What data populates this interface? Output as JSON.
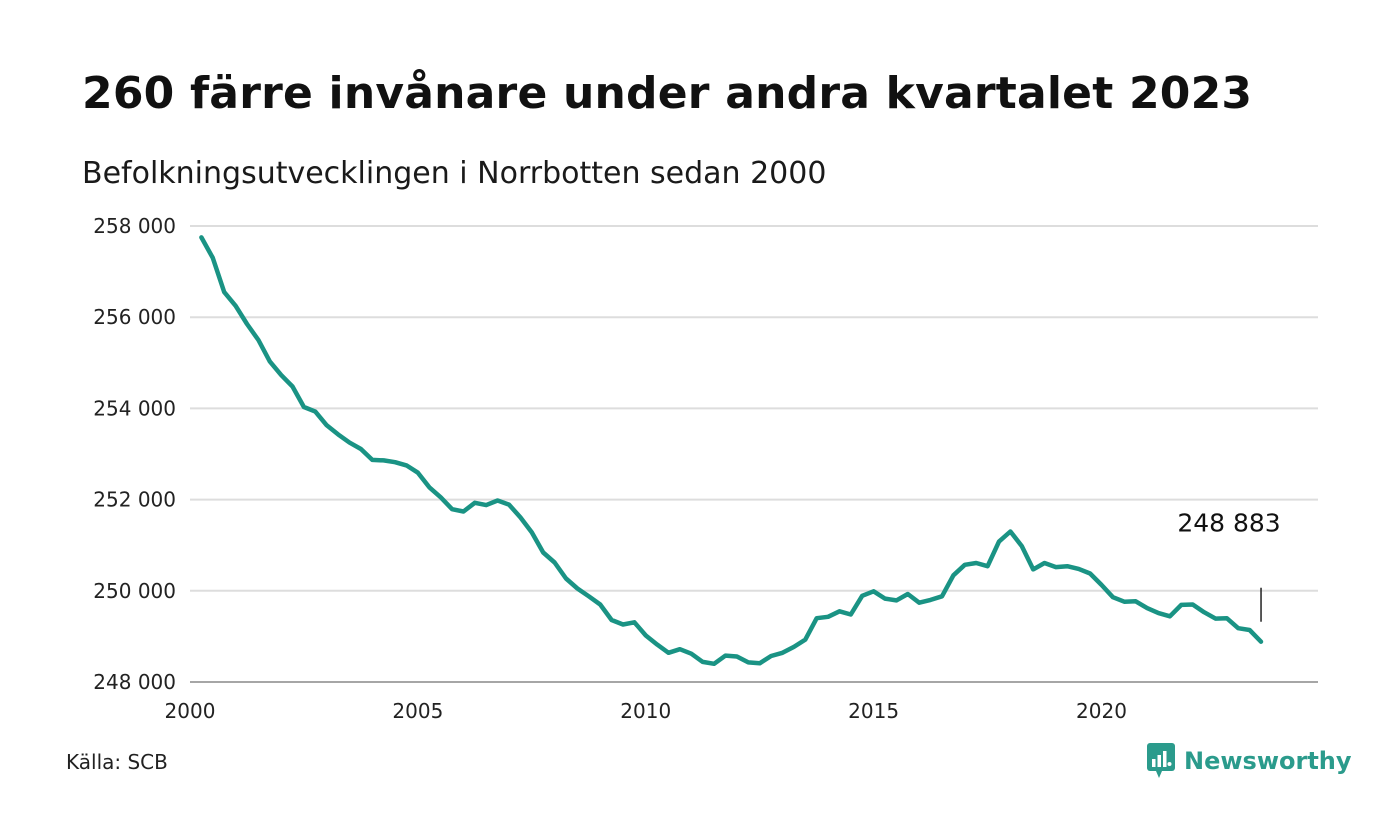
{
  "header": {
    "title": "260 färre invånare under andra kvartalet 2023",
    "subtitle": "Befolkningsutvecklingen i Norrbotten sedan 2000"
  },
  "footer": {
    "source": "Källa: SCB",
    "brand": "Newsworthy",
    "brand_icon": "newsworthy-logo-icon"
  },
  "colors": {
    "line": "#1a9384",
    "grid": "#dddddd",
    "axis": "#888888",
    "brand": "#2b9b8c"
  },
  "chart_data": {
    "type": "line",
    "title": "260 färre invånare under andra kvartalet 2023",
    "subtitle": "Befolkningsutvecklingen i Norrbotten sedan 2000",
    "xlabel": "",
    "ylabel": "",
    "grid": true,
    "legend": "none",
    "xlim": [
      2000,
      2024.75
    ],
    "ylim": [
      248000,
      258000
    ],
    "x_ticks": [
      2000,
      2005,
      2010,
      2015,
      2020
    ],
    "x_tick_labels": [
      "2000",
      "2005",
      "2010",
      "2015",
      "2020"
    ],
    "y_ticks": [
      248000,
      250000,
      252000,
      254000,
      256000,
      258000
    ],
    "y_tick_labels": [
      "248 000",
      "250 000",
      "252 000",
      "254 000",
      "256 000",
      "258 000"
    ],
    "end_label": "248 883",
    "series": [
      {
        "x": [
          2000.25,
          2000.5,
          2000.75,
          2001.0,
          2001.25,
          2001.5,
          2001.75,
          2002.0,
          2002.25,
          2002.5,
          2002.75,
          2003.0,
          2003.25,
          2003.5,
          2003.75,
          2004.0,
          2004.25,
          2004.5,
          2004.75,
          2005.0,
          2005.25,
          2005.5,
          2005.75,
          2006.0,
          2006.25,
          2006.5,
          2006.75,
          2007.0,
          2007.25,
          2007.5,
          2007.75,
          2008.0,
          2008.25,
          2008.5,
          2008.75,
          2009.0,
          2009.25,
          2009.5,
          2009.75,
          2010.0,
          2010.25,
          2010.5,
          2010.75,
          2011.0,
          2011.25,
          2011.5,
          2011.75,
          2012.0,
          2012.25,
          2012.5,
          2012.75,
          2013.0,
          2013.25,
          2013.5,
          2013.75,
          2014.0,
          2014.25,
          2014.5,
          2014.75,
          2015.0,
          2015.25,
          2015.5,
          2015.75,
          2016.0,
          2016.25,
          2016.5,
          2016.75,
          2017.0,
          2017.25,
          2017.5,
          2017.75,
          2018.0,
          2018.25,
          2018.5,
          2018.75,
          2019.0,
          2019.25,
          2019.5,
          2019.75,
          2020.0,
          2020.25,
          2020.5,
          2020.75,
          2021.0,
          2021.25,
          2021.5,
          2021.75,
          2022.0,
          2022.25,
          2022.5,
          2022.75,
          2023.0,
          2023.25,
          2023.5
        ],
        "values": [
          257750,
          257300,
          256550,
          256250,
          255850,
          255500,
          255030,
          254730,
          254480,
          254030,
          253930,
          253630,
          253430,
          253250,
          253110,
          252870,
          252860,
          252820,
          252750,
          252590,
          252270,
          252050,
          251790,
          251740,
          251930,
          251880,
          251980,
          251890,
          251610,
          251280,
          250840,
          250620,
          250270,
          250050,
          249880,
          249700,
          249360,
          249260,
          249310,
          249020,
          248820,
          248640,
          248720,
          248620,
          248440,
          248400,
          248580,
          248560,
          248430,
          248410,
          248570,
          248640,
          248770,
          248930,
          249400,
          249430,
          249550,
          249480,
          249890,
          249990,
          249830,
          249790,
          249930,
          249740,
          249800,
          249880,
          250340,
          250570,
          250610,
          250540,
          251080,
          251300,
          250980,
          250470,
          250610,
          250520,
          250540,
          250480,
          250380,
          250130,
          249860,
          249760,
          249770,
          249620,
          249510,
          249440,
          249690,
          249700,
          249530,
          249390,
          249400,
          249180,
          249140,
          248883
        ]
      }
    ]
  }
}
